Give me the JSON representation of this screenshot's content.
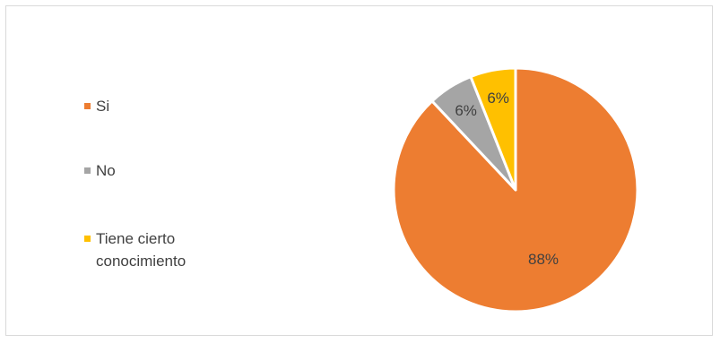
{
  "chart_data": {
    "type": "pie",
    "title": "",
    "series": [
      {
        "categories": [
          "Si",
          "No",
          "Tiene cierto conocimiento"
        ],
        "values": [
          88,
          6,
          6
        ],
        "labels": [
          "88%",
          "6%",
          "6%"
        ],
        "colors": [
          "#ED7D31",
          "#A5A5A5",
          "#FFC000"
        ]
      }
    ],
    "start_angle_deg": 0,
    "direction": "clockwise",
    "legend_position": "left"
  }
}
